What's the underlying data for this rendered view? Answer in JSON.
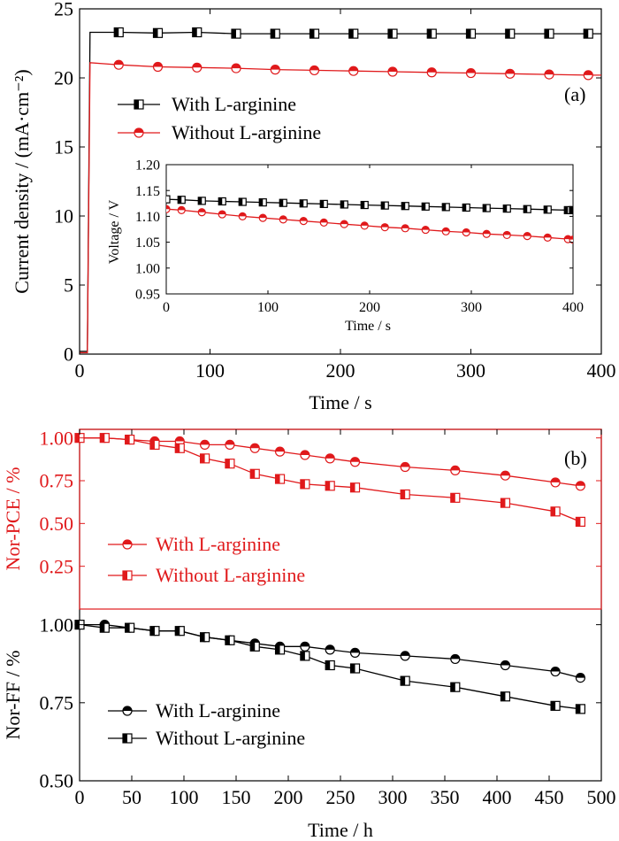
{
  "chart_data": [
    {
      "id": "a",
      "type": "line",
      "panel_label": "(a)",
      "xlabel": "Time / s",
      "ylabel": "Current density / (mA·cm⁻²)",
      "xlim": [
        0,
        400
      ],
      "ylim": [
        0,
        25
      ],
      "x_ticks": [
        "0",
        "100",
        "200",
        "300",
        "400"
      ],
      "y_ticks": [
        "0",
        "5",
        "10",
        "15",
        "20",
        "25"
      ],
      "legend_position": "upper-left",
      "series": [
        {
          "name": "With L-arginine",
          "color": "#000000",
          "marker": "square-half",
          "x": [
            0,
            3,
            6,
            8,
            30,
            60,
            90,
            120,
            150,
            180,
            210,
            240,
            270,
            300,
            330,
            360,
            390,
            400
          ],
          "y": [
            0.2,
            0.2,
            0.2,
            23.3,
            23.3,
            23.25,
            23.3,
            23.2,
            23.2,
            23.2,
            23.2,
            23.2,
            23.2,
            23.2,
            23.2,
            23.2,
            23.2,
            23.2
          ],
          "marker_x": [
            30,
            60,
            90,
            120,
            150,
            180,
            210,
            240,
            270,
            300,
            330,
            360,
            390
          ]
        },
        {
          "name": "Without L-arginine",
          "color": "#e0191b",
          "marker": "circle-half",
          "x": [
            0,
            3,
            6,
            8,
            30,
            60,
            90,
            120,
            150,
            180,
            210,
            240,
            270,
            300,
            330,
            360,
            390,
            400
          ],
          "y": [
            0.1,
            0.1,
            0.1,
            21.1,
            20.95,
            20.8,
            20.75,
            20.7,
            20.6,
            20.55,
            20.5,
            20.45,
            20.4,
            20.35,
            20.3,
            20.25,
            20.2,
            20.2
          ],
          "marker_x": [
            30,
            60,
            90,
            120,
            150,
            180,
            210,
            240,
            270,
            300,
            330,
            360,
            390
          ]
        }
      ],
      "inset": {
        "xlabel": "Time / s",
        "ylabel": "Voltage / V",
        "xlim": [
          0,
          400
        ],
        "ylim": [
          0.95,
          1.2
        ],
        "x_ticks": [
          "0",
          "100",
          "200",
          "300",
          "400"
        ],
        "y_ticks": [
          "0.95",
          "1.00",
          "1.05",
          "1.10",
          "1.15",
          "1.20"
        ],
        "series": [
          {
            "name": "With L-arginine",
            "color": "#000000",
            "marker": "square-half",
            "x": [
              0,
              15,
              35,
              55,
              75,
              95,
              115,
              135,
              155,
              175,
              195,
              215,
              235,
              255,
              275,
              295,
              315,
              335,
              355,
              375,
              395,
              400
            ],
            "y": [
              1.133,
              1.132,
              1.13,
              1.129,
              1.128,
              1.127,
              1.126,
              1.125,
              1.124,
              1.123,
              1.122,
              1.121,
              1.12,
              1.119,
              1.118,
              1.117,
              1.116,
              1.115,
              1.114,
              1.113,
              1.112,
              1.112
            ]
          },
          {
            "name": "Without L-arginine",
            "color": "#e0191b",
            "marker": "circle-half",
            "x": [
              0,
              15,
              35,
              55,
              75,
              95,
              115,
              135,
              155,
              175,
              195,
              215,
              235,
              255,
              275,
              295,
              315,
              335,
              355,
              375,
              395,
              400
            ],
            "y": [
              1.114,
              1.112,
              1.108,
              1.104,
              1.1,
              1.097,
              1.094,
              1.091,
              1.088,
              1.085,
              1.082,
              1.079,
              1.077,
              1.074,
              1.071,
              1.069,
              1.066,
              1.064,
              1.062,
              1.059,
              1.056,
              1.055
            ]
          }
        ]
      }
    },
    {
      "id": "b",
      "type": "line",
      "panel_label": "(b)",
      "xlabel": "Time / h",
      "xlim": [
        0,
        500
      ],
      "x_ticks": [
        "0",
        "50",
        "100",
        "150",
        "200",
        "250",
        "300",
        "350",
        "400",
        "450",
        "500"
      ],
      "subplots": [
        {
          "ylabel": "Nor-PCE / %",
          "axis_color": "#e0191b",
          "ylim": [
            0,
            1.05
          ],
          "y_ticks": [
            "0.25",
            "0.50",
            "0.75",
            "1.00"
          ],
          "legend_position": "lower-left",
          "series": [
            {
              "name": "With L-arginine",
              "color": "#e0191b",
              "marker": "circle-half",
              "x": [
                0,
                24,
                48,
                72,
                96,
                120,
                144,
                168,
                192,
                216,
                240,
                264,
                312,
                360,
                408,
                456,
                480
              ],
              "y": [
                1.0,
                1.0,
                0.99,
                0.98,
                0.98,
                0.96,
                0.96,
                0.94,
                0.92,
                0.9,
                0.88,
                0.86,
                0.83,
                0.81,
                0.78,
                0.74,
                0.72
              ]
            },
            {
              "name": "Without L-arginine",
              "color": "#e0191b",
              "marker": "square-half",
              "x": [
                0,
                24,
                48,
                72,
                96,
                120,
                144,
                168,
                192,
                216,
                240,
                264,
                312,
                360,
                408,
                456,
                480
              ],
              "y": [
                1.0,
                1.0,
                0.99,
                0.96,
                0.94,
                0.88,
                0.85,
                0.79,
                0.76,
                0.73,
                0.72,
                0.71,
                0.67,
                0.65,
                0.62,
                0.57,
                0.51
              ]
            }
          ]
        },
        {
          "ylabel": "Nor-FF / %",
          "axis_color": "#000000",
          "ylim": [
            0.5,
            1.05
          ],
          "y_ticks": [
            "0.50",
            "0.75",
            "1.00"
          ],
          "legend_position": "lower-left",
          "series": [
            {
              "name": "With L-arginine",
              "color": "#000000",
              "marker": "circle-half",
              "x": [
                0,
                24,
                48,
                72,
                96,
                120,
                144,
                168,
                192,
                216,
                240,
                264,
                312,
                360,
                408,
                456,
                480
              ],
              "y": [
                1.0,
                1.0,
                0.99,
                0.98,
                0.98,
                0.96,
                0.95,
                0.94,
                0.93,
                0.93,
                0.92,
                0.91,
                0.9,
                0.89,
                0.87,
                0.85,
                0.83
              ]
            },
            {
              "name": "Without L-arginine",
              "color": "#000000",
              "marker": "square-half",
              "x": [
                0,
                24,
                48,
                72,
                96,
                120,
                144,
                168,
                192,
                216,
                240,
                264,
                312,
                360,
                408,
                456,
                480
              ],
              "y": [
                1.0,
                0.99,
                0.99,
                0.98,
                0.98,
                0.96,
                0.95,
                0.93,
                0.92,
                0.9,
                0.87,
                0.86,
                0.82,
                0.8,
                0.77,
                0.74,
                0.73
              ]
            }
          ]
        }
      ]
    }
  ]
}
